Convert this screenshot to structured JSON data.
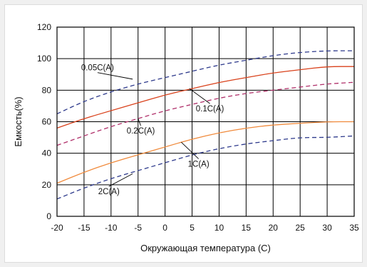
{
  "chart_data": {
    "type": "line",
    "title": "",
    "xlabel": "Окружающая температура (C)",
    "ylabel": "Емкость(%)",
    "xlim": [
      -20,
      35
    ],
    "ylim": [
      0,
      120
    ],
    "x_ticks": [
      -20,
      -15,
      -10,
      -5,
      0,
      5,
      10,
      15,
      20,
      25,
      30,
      35
    ],
    "y_ticks": [
      0,
      20,
      40,
      60,
      80,
      100,
      120
    ],
    "grid": true,
    "legend": "none",
    "series": [
      {
        "name": "0.05C(A)",
        "color": "#2e3a8c",
        "style": "dashed",
        "x": [
          -20,
          -15,
          -10,
          -5,
          0,
          5,
          10,
          15,
          20,
          25,
          30,
          35
        ],
        "y": [
          65,
          73,
          79,
          84,
          88,
          92,
          96,
          99,
          102,
          104,
          105,
          105
        ]
      },
      {
        "name": "0.1C(A)",
        "color": "#d9421c",
        "style": "solid",
        "x": [
          -20,
          -15,
          -10,
          -5,
          0,
          5,
          10,
          15,
          20,
          25,
          30,
          35
        ],
        "y": [
          56,
          62,
          67,
          72,
          77,
          81,
          85,
          88,
          91,
          93,
          95,
          95
        ]
      },
      {
        "name": "0.2C(A)",
        "color": "#b0306a",
        "style": "dashed",
        "x": [
          -20,
          -15,
          -10,
          -5,
          0,
          5,
          10,
          15,
          20,
          25,
          30,
          35
        ],
        "y": [
          45,
          51,
          57,
          62,
          67,
          71,
          75,
          78,
          80,
          82,
          84,
          85
        ]
      },
      {
        "name": "1C(A)",
        "color": "#f08a3c",
        "style": "solid",
        "x": [
          -20,
          -15,
          -10,
          -5,
          0,
          5,
          10,
          15,
          20,
          25,
          30,
          35
        ],
        "y": [
          21,
          28,
          34,
          39,
          44,
          49,
          53,
          56,
          58,
          59,
          60,
          60
        ]
      },
      {
        "name": "2C(A)",
        "color": "#2e3a8c",
        "style": "dashed",
        "x": [
          -20,
          -15,
          -10,
          -5,
          0,
          5,
          10,
          15,
          20,
          25,
          30,
          35
        ],
        "y": [
          11,
          18,
          24,
          29,
          34,
          39,
          43,
          46,
          48,
          50,
          50,
          51
        ]
      }
    ],
    "annotations": [
      {
        "text": "0.05C(A)",
        "series": 0,
        "label_at": [
          -12.5,
          92.5
        ],
        "point_to": [
          -6,
          87
        ]
      },
      {
        "text": "0.1C(A)",
        "series": 1,
        "label_at": [
          8.3,
          66.5
        ],
        "point_to": [
          4.5,
          81
        ]
      },
      {
        "text": "0.2C(A)",
        "series": 2,
        "label_at": [
          -4.5,
          52.5
        ],
        "point_to": [
          -5,
          62
        ]
      },
      {
        "text": "1C(A)",
        "series": 3,
        "label_at": [
          6.2,
          31.5
        ],
        "point_to": [
          3,
          47
        ]
      },
      {
        "text": "2C(A)",
        "series": 4,
        "label_at": [
          -10.4,
          14
        ],
        "point_to": [
          -6,
          27
        ]
      }
    ]
  }
}
